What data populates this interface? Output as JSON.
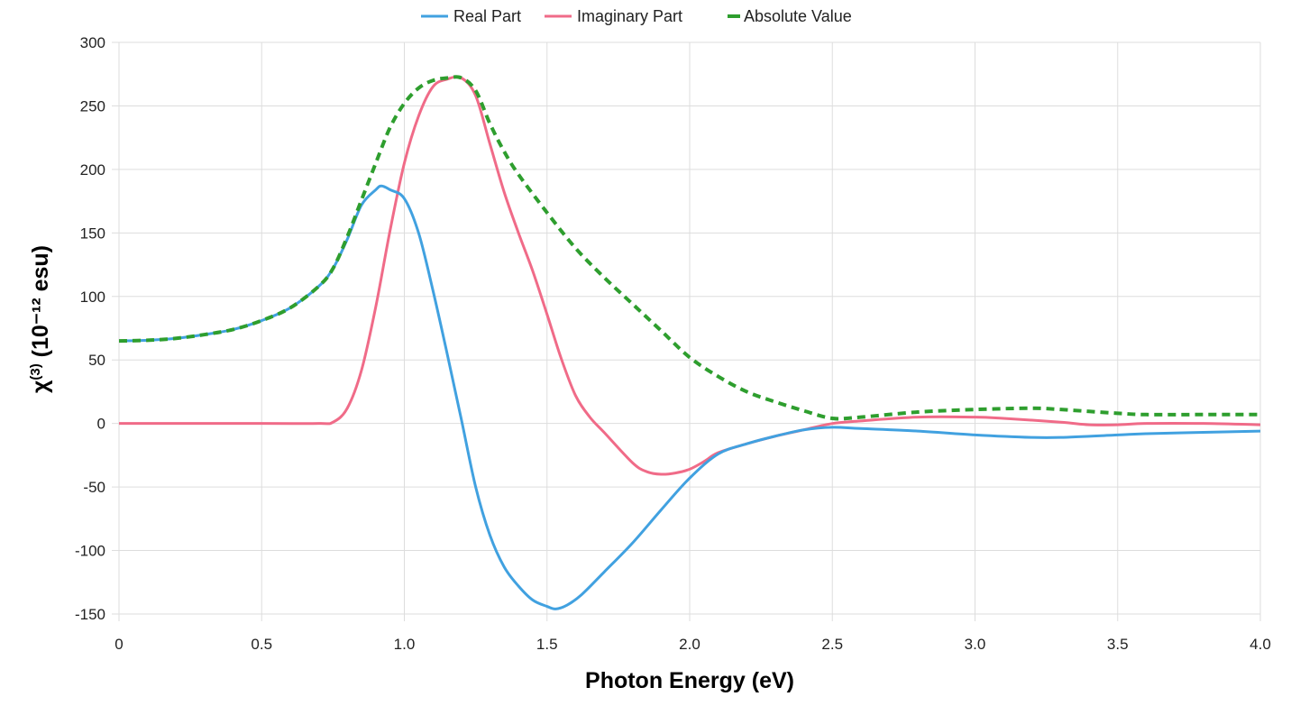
{
  "chart_data": {
    "type": "line",
    "title": "",
    "xlabel": "Photon Energy (eV)",
    "ylabel": "χ(3) (10⁻¹² esu)",
    "ylabel_main": "χ",
    "ylabel_sup": "(3)",
    "ylabel_rest": " (10⁻¹² esu)",
    "xlim": [
      0,
      4
    ],
    "ylim": [
      -150,
      300
    ],
    "x_ticks": [
      0,
      0.5,
      1.0,
      1.5,
      2.0,
      2.5,
      3.0,
      3.5,
      4.0
    ],
    "x_tick_labels": [
      "0",
      "0.5",
      "1.0",
      "1.5",
      "2.0",
      "2.5",
      "3.0",
      "3.5",
      "4.0"
    ],
    "y_ticks": [
      -150,
      -100,
      -50,
      0,
      50,
      100,
      150,
      200,
      250,
      300
    ],
    "y_tick_labels": [
      "-150",
      "-100",
      "-50",
      "0",
      "50",
      "100",
      "150",
      "200",
      "250",
      "300"
    ],
    "grid": true,
    "legend_position": "top-center",
    "series": [
      {
        "name": "Real Part",
        "color": "#41a1e0",
        "dash": false,
        "x": [
          0,
          0.1,
          0.2,
          0.3,
          0.4,
          0.5,
          0.6,
          0.7,
          0.75,
          0.8,
          0.85,
          0.9,
          0.92,
          0.95,
          1.0,
          1.05,
          1.1,
          1.15,
          1.2,
          1.25,
          1.3,
          1.35,
          1.4,
          1.45,
          1.5,
          1.53,
          1.57,
          1.62,
          1.7,
          1.8,
          1.9,
          2.0,
          2.1,
          2.2,
          2.3,
          2.4,
          2.5,
          2.6,
          2.8,
          3.0,
          3.2,
          3.3,
          3.5,
          3.6,
          3.8,
          4.0
        ],
        "values": [
          65,
          65.5,
          67,
          70,
          74,
          81,
          91,
          108,
          122,
          145,
          172,
          184,
          187,
          184,
          177,
          150,
          105,
          55,
          3,
          -50,
          -88,
          -113,
          -128,
          -139,
          -144,
          -146,
          -143,
          -135,
          -117,
          -94,
          -68,
          -43,
          -24,
          -16,
          -10,
          -5,
          -3,
          -4,
          -6,
          -9,
          -11,
          -11,
          -9,
          -8,
          -7,
          -6
        ]
      },
      {
        "name": "Imaginary Part",
        "color": "#f06b88",
        "dash": false,
        "x": [
          0,
          0.5,
          0.7,
          0.75,
          0.8,
          0.85,
          0.9,
          0.95,
          1.0,
          1.05,
          1.1,
          1.15,
          1.2,
          1.25,
          1.3,
          1.35,
          1.4,
          1.45,
          1.5,
          1.55,
          1.6,
          1.65,
          1.7,
          1.8,
          1.85,
          1.9,
          1.95,
          2.0,
          2.05,
          2.1,
          2.2,
          2.3,
          2.4,
          2.5,
          2.6,
          2.8,
          3.0,
          3.1,
          3.3,
          3.4,
          3.5,
          3.6,
          3.8,
          4.0
        ],
        "values": [
          0,
          0,
          0,
          1,
          12,
          42,
          92,
          152,
          205,
          242,
          265,
          271,
          272,
          258,
          220,
          182,
          150,
          120,
          86,
          51,
          22,
          5,
          -7,
          -31,
          -38,
          -40,
          -39,
          -36,
          -30,
          -23,
          -16,
          -10,
          -5,
          0,
          2,
          5,
          5,
          4,
          1,
          -1,
          -1,
          0,
          0,
          -1
        ]
      },
      {
        "name": "Absolute Value",
        "color": "#2e9e2e",
        "dash": true,
        "x": [
          0,
          0.1,
          0.2,
          0.3,
          0.4,
          0.5,
          0.6,
          0.7,
          0.75,
          0.8,
          0.85,
          0.9,
          0.95,
          1.0,
          1.05,
          1.1,
          1.15,
          1.2,
          1.25,
          1.3,
          1.35,
          1.4,
          1.5,
          1.6,
          1.7,
          1.8,
          1.9,
          2.0,
          2.1,
          2.2,
          2.3,
          2.4,
          2.5,
          2.6,
          2.8,
          3.0,
          3.2,
          3.3,
          3.5,
          3.6,
          3.8,
          4.0
        ],
        "values": [
          65,
          65.5,
          67,
          70,
          74,
          81,
          91,
          108,
          122,
          147,
          176,
          205,
          233,
          252,
          264,
          270,
          272,
          272,
          262,
          236,
          214,
          196,
          166,
          138,
          115,
          94,
          73,
          52,
          37,
          25,
          17,
          10,
          4,
          5,
          9,
          11,
          12,
          11,
          8,
          7,
          7,
          7
        ]
      }
    ]
  }
}
